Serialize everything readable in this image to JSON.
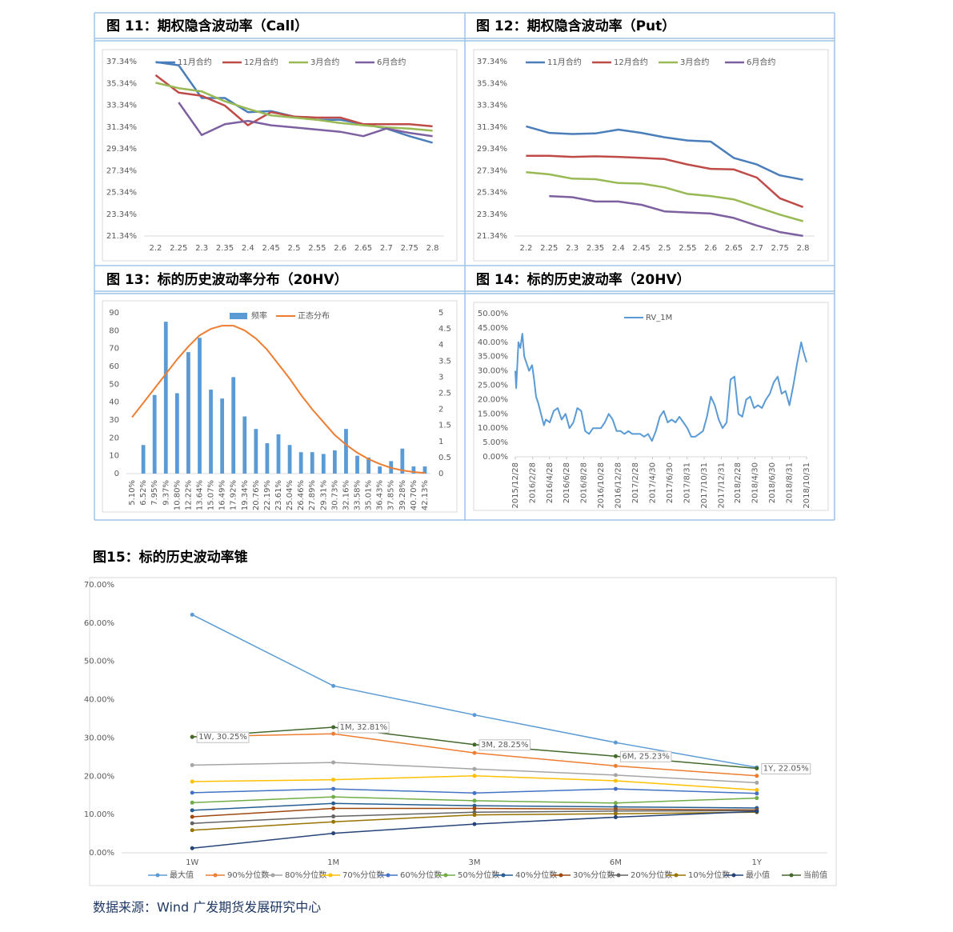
{
  "chart_data": [
    {
      "type": "line",
      "title": "图 11：期权隐含波动率（Call）",
      "categories": [
        "2.2",
        "2.25",
        "2.3",
        "2.35",
        "2.4",
        "2.45",
        "2.5",
        "2.55",
        "2.6",
        "2.65",
        "2.7",
        "2.75",
        "2.8"
      ],
      "ylim": [
        21.34,
        37.34
      ],
      "yticks": [
        {
          "value": 21.34,
          "label": "21.34%"
        },
        {
          "value": 23.34,
          "label": "23.34%"
        },
        {
          "value": 25.34,
          "label": "25.34%"
        },
        {
          "value": 27.34,
          "label": "27.34%"
        },
        {
          "value": 29.34,
          "label": "29.34%"
        },
        {
          "value": 31.34,
          "label": "31.34%"
        },
        {
          "value": 33.34,
          "label": "33.34%"
        },
        {
          "value": 35.34,
          "label": "35.34%"
        },
        {
          "value": 37.34,
          "label": "37.34%"
        }
      ],
      "grid": false,
      "legend": "top",
      "series": [
        {
          "name": "11月合约",
          "color": "#4a7ebb",
          "values": [
            37.3,
            37.0,
            34.0,
            34.0,
            32.7,
            32.8,
            32.3,
            32.0,
            32.0,
            31.6,
            31.2,
            30.5,
            29.9
          ]
        },
        {
          "name": "12月合约",
          "color": "#be4b48",
          "values": [
            36.1,
            34.5,
            34.2,
            33.3,
            31.5,
            32.7,
            32.3,
            32.2,
            32.2,
            31.6,
            31.6,
            31.6,
            31.4
          ]
        },
        {
          "name": "3月合约",
          "color": "#98b954",
          "values": [
            35.4,
            34.9,
            34.6,
            33.7,
            33.0,
            32.4,
            32.2,
            32.0,
            31.7,
            31.5,
            31.3,
            31.2,
            31.0
          ]
        },
        {
          "name": "6月合约",
          "color": "#7d60a0",
          "values": [
            null,
            33.6,
            30.6,
            31.6,
            31.9,
            31.5,
            31.3,
            31.1,
            30.9,
            30.5,
            31.2,
            30.8,
            30.5
          ]
        }
      ]
    },
    {
      "type": "line",
      "title": "图 12：期权隐含波动率（Put）",
      "categories": [
        "2.2",
        "2.25",
        "2.3",
        "2.35",
        "2.4",
        "2.45",
        "2.5",
        "2.55",
        "2.6",
        "2.65",
        "2.7",
        "2.75",
        "2.8"
      ],
      "ylim": [
        21.34,
        37.34
      ],
      "yticks": [
        {
          "value": 21.34,
          "label": "21.34%"
        },
        {
          "value": 23.34,
          "label": "23.34%"
        },
        {
          "value": 25.34,
          "label": "25.34%"
        },
        {
          "value": 27.34,
          "label": "27.34%"
        },
        {
          "value": 29.34,
          "label": "29.34%"
        },
        {
          "value": 31.34,
          "label": "31.34%"
        },
        {
          "value": 33.34,
          "label": "33.34%"
        },
        {
          "value": 35.34,
          "label": "35.34%"
        },
        {
          "value": 37.34,
          "label": "37.34%"
        }
      ],
      "grid": false,
      "legend": "top",
      "series": [
        {
          "name": "11月合约",
          "color": "#4a7ebb",
          "values": [
            31.4,
            30.8,
            30.7,
            30.75,
            31.1,
            30.8,
            30.4,
            30.1,
            30.0,
            28.5,
            27.9,
            26.9,
            26.5
          ]
        },
        {
          "name": "12月合约",
          "color": "#be4b48",
          "values": [
            28.7,
            28.7,
            28.6,
            28.65,
            28.6,
            28.5,
            28.4,
            27.9,
            27.5,
            27.45,
            26.7,
            24.8,
            24.0
          ]
        },
        {
          "name": "3月合约",
          "color": "#98b954",
          "values": [
            27.2,
            27.0,
            26.6,
            26.55,
            26.2,
            26.15,
            25.8,
            25.2,
            25.0,
            24.7,
            24.0,
            23.3,
            22.7
          ]
        },
        {
          "name": "6月合约",
          "color": "#7d60a0",
          "values": [
            null,
            25.0,
            24.9,
            24.5,
            24.5,
            24.2,
            23.6,
            23.5,
            23.4,
            23.0,
            22.3,
            21.7,
            21.35
          ]
        }
      ]
    },
    {
      "type": "combo",
      "title": "图 13：标的历史波动率分布（20HV）",
      "categories": [
        "5.10%",
        "6.52%",
        "7.95%",
        "9.37%",
        "10.80%",
        "12.22%",
        "13.64%",
        "15.07%",
        "16.49%",
        "17.92%",
        "19.34%",
        "20.76%",
        "22.19%",
        "23.61%",
        "25.04%",
        "26.46%",
        "27.89%",
        "29.31%",
        "30.73%",
        "32.16%",
        "33.58%",
        "35.01%",
        "36.43%",
        "37.85%",
        "39.28%",
        "40.70%",
        "42.13%"
      ],
      "ylim": [
        0,
        90
      ],
      "yticks": [
        0,
        10,
        20,
        30,
        40,
        50,
        60,
        70,
        80,
        90
      ],
      "y2lim": [
        0,
        5
      ],
      "y2ticks": [
        0,
        0.5,
        1,
        1.5,
        2,
        2.5,
        3,
        3.5,
        4,
        4.5,
        5
      ],
      "grid": false,
      "legend": "top",
      "series": [
        {
          "name": "频率",
          "type": "bar",
          "color": "#5b9bd5",
          "values": [
            0,
            16,
            44,
            85,
            45,
            68,
            76,
            47,
            42,
            54,
            32,
            25,
            17,
            22,
            16,
            12,
            12,
            11,
            13,
            25,
            10,
            9,
            4,
            7,
            14,
            4,
            4
          ]
        },
        {
          "name": "正态分布",
          "type": "line",
          "axis": "y2",
          "color": "#ed7d31",
          "values": [
            1.75,
            2.2,
            2.65,
            3.1,
            3.55,
            3.95,
            4.3,
            4.5,
            4.6,
            4.6,
            4.45,
            4.2,
            3.85,
            3.4,
            2.95,
            2.45,
            2.0,
            1.6,
            1.2,
            0.9,
            0.65,
            0.45,
            0.3,
            0.18,
            0.1,
            0.05,
            0.02
          ]
        }
      ]
    },
    {
      "type": "line",
      "title": "图 14：标的历史波动率（20HV）",
      "x": [
        "2015/12/28",
        "2015/12/31",
        "2016/1/8",
        "2016/1/15",
        "2016/1/22",
        "2016/1/29",
        "2016/2/5",
        "2016/2/15",
        "2016/2/26",
        "2016/3/4",
        "2016/3/11",
        "2016/3/18",
        "2016/3/31",
        "2016/4/8",
        "2016/4/15",
        "2016/4/29",
        "2016/5/13",
        "2016/5/27",
        "2016/6/10",
        "2016/6/24",
        "2016/7/8",
        "2016/7/22",
        "2016/8/5",
        "2016/8/19",
        "2016/9/2",
        "2016/9/16",
        "2016/9/30",
        "2016/10/14",
        "2016/10/28",
        "2016/11/11",
        "2016/11/25",
        "2016/12/9",
        "2016/12/23",
        "2017/1/6",
        "2017/1/20",
        "2017/2/3",
        "2017/2/17",
        "2017/3/3",
        "2017/3/17",
        "2017/3/31",
        "2017/4/14",
        "2017/4/28",
        "2017/5/12",
        "2017/5/26",
        "2017/6/9",
        "2017/6/23",
        "2017/7/7",
        "2017/7/21",
        "2017/8/4",
        "2017/8/18",
        "2017/9/1",
        "2017/9/15",
        "2017/9/29",
        "2017/10/13",
        "2017/10/27",
        "2017/11/10",
        "2017/11/24",
        "2017/12/8",
        "2017/12/22",
        "2018/1/5",
        "2018/1/19",
        "2018/2/2",
        "2018/2/16",
        "2018/3/2",
        "2018/3/16",
        "2018/3/30",
        "2018/4/13",
        "2018/4/27",
        "2018/5/11",
        "2018/5/25",
        "2018/6/8",
        "2018/6/22",
        "2018/7/6",
        "2018/7/20",
        "2018/8/3",
        "2018/8/17",
        "2018/8/31",
        "2018/9/14",
        "2018/9/28",
        "2018/10/12",
        "2018/10/19",
        "2018/10/31"
      ],
      "xlim": [
        "2015/12/28",
        "2018/10/31"
      ],
      "xticks": [
        "2015/12/28",
        "2016/2/28",
        "2016/4/28",
        "2016/6/28",
        "2016/8/28",
        "2016/10/28",
        "2016/12/28",
        "2017/2/28",
        "2017/4/30",
        "2017/6/30",
        "2017/8/31",
        "2017/10/31",
        "2017/12/31",
        "2018/2/28",
        "2018/4/30",
        "2018/6/30",
        "2018/8/31",
        "2018/10/31"
      ],
      "ylim": [
        0,
        50
      ],
      "yticks": [
        {
          "value": 0,
          "label": "0.00%"
        },
        {
          "value": 5,
          "label": "5.00%"
        },
        {
          "value": 10,
          "label": "10.00%"
        },
        {
          "value": 15,
          "label": "15.00%"
        },
        {
          "value": 20,
          "label": "20.00%"
        },
        {
          "value": 25,
          "label": "25.00%"
        },
        {
          "value": 30,
          "label": "30.00%"
        },
        {
          "value": 35,
          "label": "35.00%"
        },
        {
          "value": 40,
          "label": "40.00%"
        },
        {
          "value": 45,
          "label": "45.00%"
        },
        {
          "value": 50,
          "label": "50.00%"
        }
      ],
      "grid": false,
      "legend": "top",
      "series": [
        {
          "name": "RV_1M",
          "color": "#5b9bd5",
          "values": [
            30,
            24,
            40,
            38,
            43,
            35,
            33,
            30,
            32,
            27,
            21,
            19,
            14,
            11,
            13,
            12,
            16,
            17,
            13,
            15,
            10,
            12,
            17,
            16,
            9,
            8,
            10,
            10,
            10,
            12,
            15,
            13,
            9,
            9,
            8,
            9,
            8,
            8,
            8,
            7,
            8,
            5.5,
            9,
            14,
            16,
            12,
            13,
            12,
            14,
            12,
            10,
            7,
            7,
            8,
            9,
            14,
            21,
            18,
            13,
            10,
            12,
            27,
            28,
            15,
            14,
            20,
            21,
            17,
            18,
            17,
            20,
            22,
            26,
            28,
            22,
            23,
            18,
            25,
            33,
            40,
            37,
            33
          ]
        }
      ]
    },
    {
      "type": "line",
      "title": "图15：标的历史波动率锥",
      "markers": true,
      "categories": [
        "1W",
        "1M",
        "3M",
        "6M",
        "1Y"
      ],
      "ylim": [
        0,
        70
      ],
      "yticks": [
        {
          "value": 0,
          "label": "0.00%"
        },
        {
          "value": 10,
          "label": "10.00%"
        },
        {
          "value": 20,
          "label": "20.00%"
        },
        {
          "value": 30,
          "label": "30.00%"
        },
        {
          "value": 40,
          "label": "40.00%"
        },
        {
          "value": 50,
          "label": "50.00%"
        },
        {
          "value": 60,
          "label": "60.00%"
        },
        {
          "value": 70,
          "label": "70.00%"
        }
      ],
      "grid": false,
      "legend": "bottom",
      "series": [
        {
          "name": "最大值",
          "color": "#5b9bd5",
          "values": [
            62.2,
            43.6,
            36.0,
            28.8,
            22.3
          ]
        },
        {
          "name": "90%分位数",
          "color": "#ed7d31",
          "values": [
            30.3,
            31.1,
            26.1,
            22.7,
            20.1
          ]
        },
        {
          "name": "80%分位数",
          "color": "#a5a5a5",
          "values": [
            22.9,
            23.6,
            21.9,
            20.3,
            18.3
          ]
        },
        {
          "name": "70%分位数",
          "color": "#ffc000",
          "values": [
            18.6,
            19.1,
            20.1,
            18.8,
            16.4
          ]
        },
        {
          "name": "60%分位数",
          "color": "#4472c4",
          "values": [
            15.7,
            16.7,
            15.6,
            16.7,
            15.5
          ]
        },
        {
          "name": "50%分位数",
          "color": "#70ad47",
          "values": [
            13.1,
            14.6,
            13.6,
            13.0,
            14.3
          ]
        },
        {
          "name": "40%分位数",
          "color": "#255e91",
          "values": [
            11.1,
            12.9,
            12.3,
            12.0,
            11.7
          ]
        },
        {
          "name": "30%分位数",
          "color": "#9e480e",
          "values": [
            9.4,
            11.6,
            11.6,
            11.4,
            11.2
          ]
        },
        {
          "name": "20%分位数",
          "color": "#636363",
          "values": [
            7.7,
            9.5,
            10.6,
            10.9,
            11.0
          ]
        },
        {
          "name": "10%分位数",
          "color": "#997300",
          "values": [
            5.9,
            8.1,
            9.9,
            10.2,
            10.6
          ]
        },
        {
          "name": "最小值",
          "color": "#264478",
          "values": [
            1.2,
            5.1,
            7.5,
            9.3,
            10.8
          ]
        },
        {
          "name": "当前值",
          "color": "#43682b",
          "values": [
            30.25,
            32.81,
            28.25,
            25.23,
            22.05
          ],
          "value_labels": [
            "1W, 30.25%",
            "1M, 32.81%",
            "3M, 28.25%",
            "6M, 25.23%",
            "1Y, 22.05%"
          ]
        }
      ]
    }
  ],
  "source": "数据来源：Wind 广发期货发展研究中心"
}
